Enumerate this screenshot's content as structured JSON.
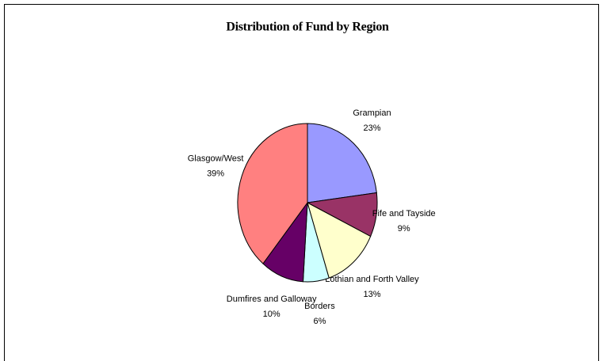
{
  "chart_data": {
    "type": "pie",
    "title": "Distribution of Fund by Region",
    "categories": [
      "Grampian",
      "Fife and Tayside",
      "Lothian and Forth Valley",
      "Borders",
      "Dumfires and Galloway",
      "Glasgow/West"
    ],
    "values": [
      23,
      9,
      13,
      6,
      10,
      39
    ],
    "value_labels": [
      "23%",
      "9%",
      "13%",
      "6%",
      "10%",
      "39%"
    ],
    "colors": [
      "#9999ff",
      "#993366",
      "#ffffcc",
      "#ccffff",
      "#660066",
      "#ff8080"
    ]
  }
}
